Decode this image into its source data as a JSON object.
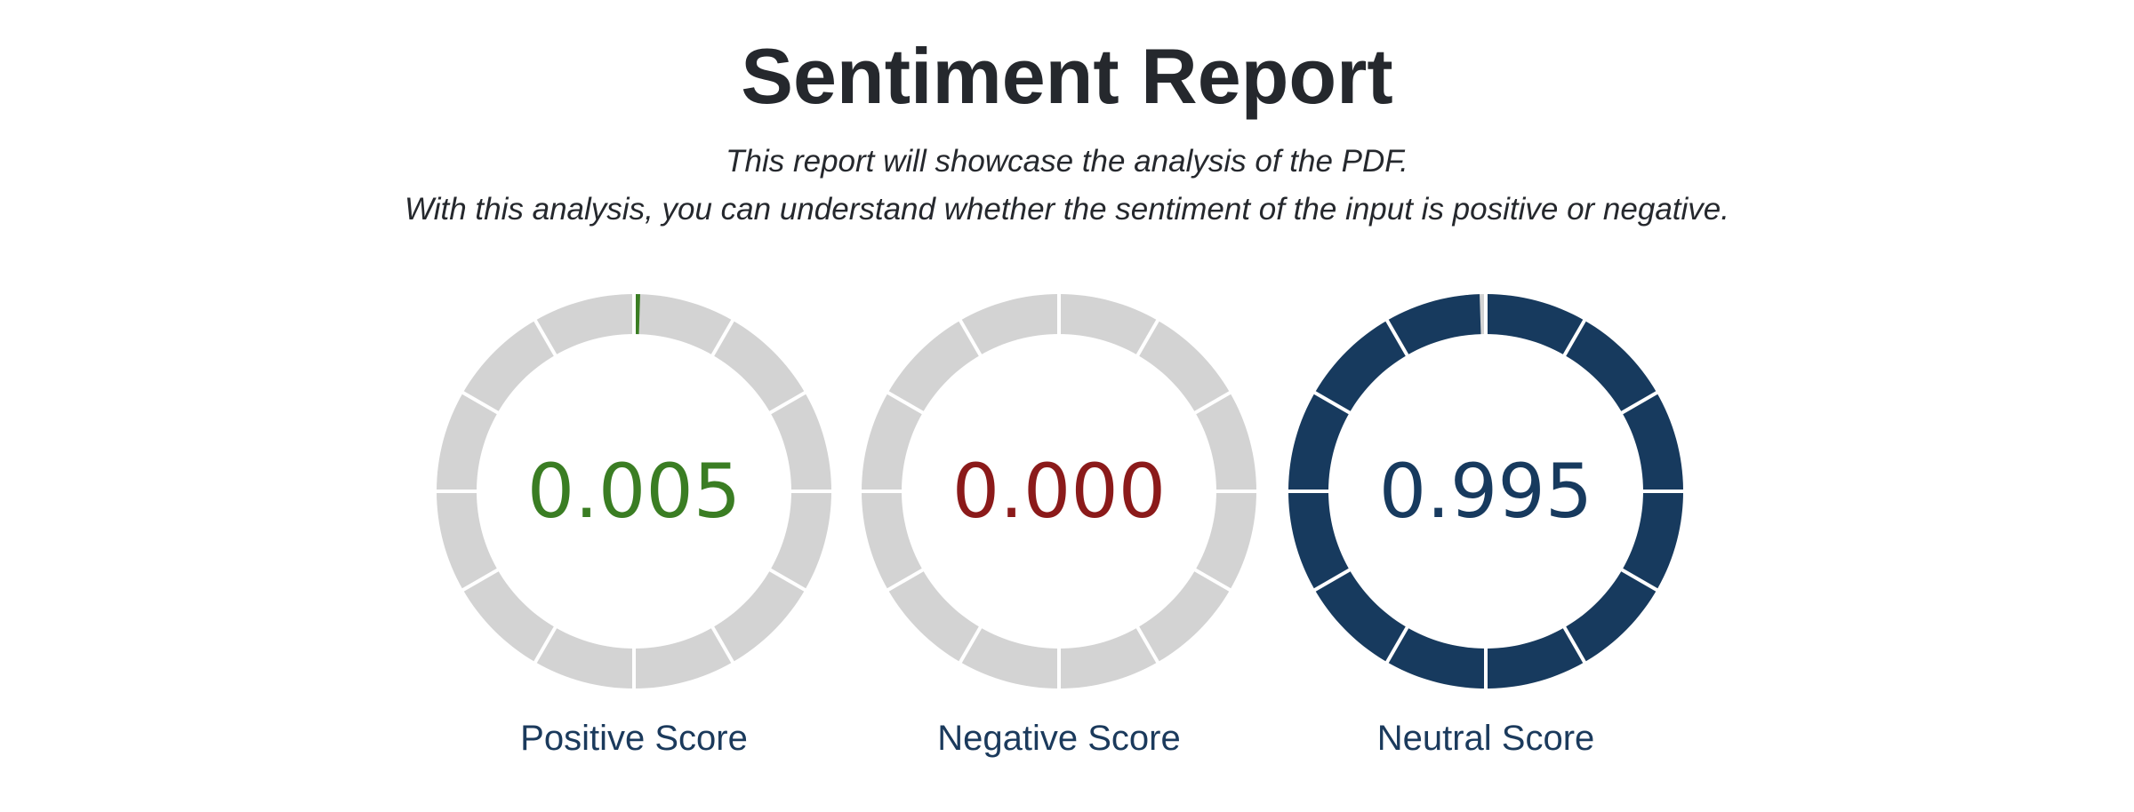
{
  "header": {
    "title": "Sentiment Report",
    "subtitle_line1": "This report will showcase the analysis of the PDF.",
    "subtitle_line2": "With this analysis, you can understand whether the sentiment of the input is positive or negative."
  },
  "gauges": [
    {
      "id": "positive",
      "value": "0.005",
      "fraction": 0.005,
      "label": "Positive Score",
      "color": "#3a7d23"
    },
    {
      "id": "negative",
      "value": "0.000",
      "fraction": 0.0,
      "label": "Negative Score",
      "color": "#8b1a1a"
    },
    {
      "id": "neutral",
      "value": "0.995",
      "fraction": 0.995,
      "label": "Neutral Score",
      "color": "#173a5e"
    }
  ],
  "colors": {
    "track": "#d3d3d3",
    "segment_divider": "#ffffff",
    "label": "#1b3a5c",
    "heading": "#25282d"
  }
}
